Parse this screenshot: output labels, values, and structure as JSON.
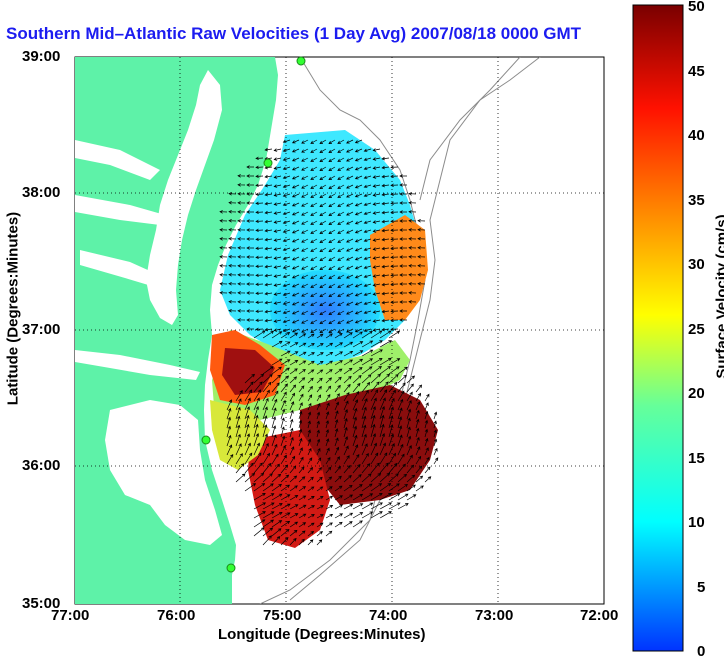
{
  "title": "Southern Mid–Atlantic Raw Velocities (1 Day Avg) 2007/08/18 0000 GMT",
  "x_axis": {
    "label": "Longitude (Degrees:Minutes)",
    "ticks": [
      "77:00",
      "76:00",
      "75:00",
      "74:00",
      "73:00",
      "72:00"
    ]
  },
  "y_axis": {
    "label": "Latitude (Degrees:Minutes)",
    "ticks": [
      "39:00",
      "38:00",
      "37:00",
      "36:00",
      "35:00"
    ]
  },
  "colorbar": {
    "label": "Surface Velocity (cm/s)",
    "ticks": [
      "50",
      "45",
      "40",
      "35",
      "30",
      "25",
      "20",
      "15",
      "10",
      "5",
      "0"
    ],
    "min": 0,
    "max": 50,
    "colormap": [
      "#0033ff",
      "#00ffff",
      "#66ff99",
      "#ffff00",
      "#ff8800",
      "#ff1100",
      "#7a0000"
    ]
  },
  "map_colors": {
    "land": "#5ef2a8",
    "water": "#ffffff",
    "bathymetry_contour": "#8c8c8c",
    "station_marker": "#33ff33"
  },
  "grid": "dotted"
}
